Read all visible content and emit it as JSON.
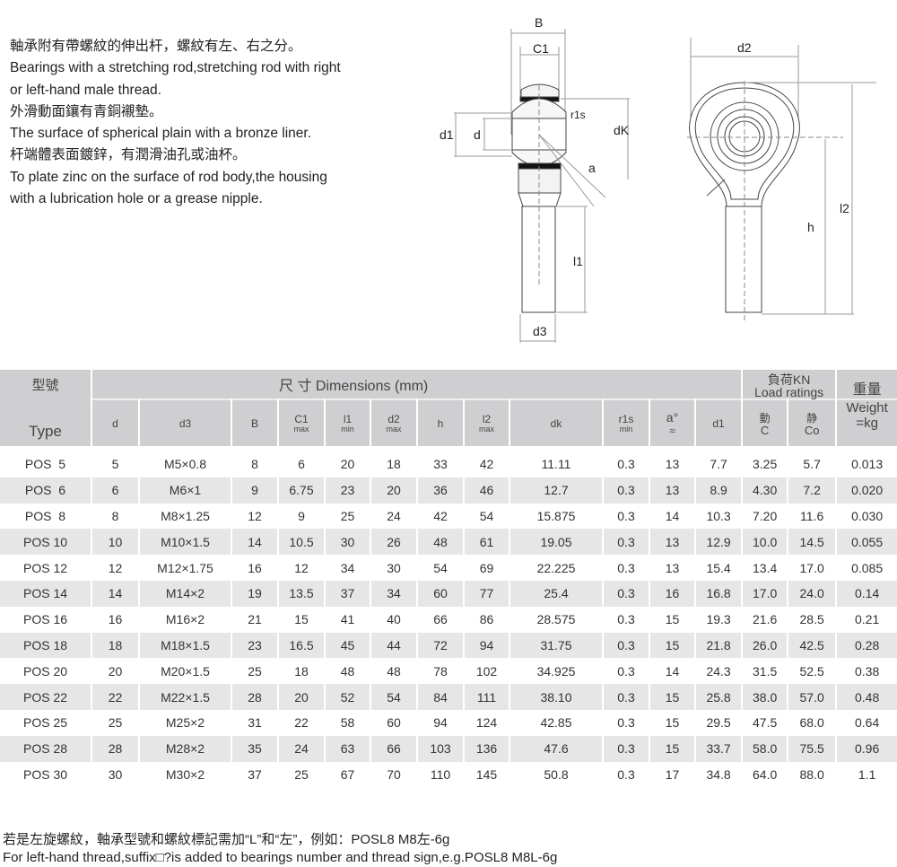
{
  "intro": [
    "軸承附有帶螺紋的伸出杆，螺紋有左、右之分。",
    "Bearings with a stretching rod,stretching rod with right",
    "or left-hand male thread.",
    "外滑動面鑲有青銅襯墊。",
    "The surface of spherical plain with a bronze liner.",
    "杆端體表面鍍鋅，有潤滑油孔或油杯。",
    "To plate zinc on the surface of rod body,the housing",
    "with a lubrication hole or a grease nipple."
  ],
  "drawing_labels": {
    "B": "B",
    "C1": "C1",
    "r1s": "r1s",
    "d1": "d1",
    "d": "d",
    "dk": "dK",
    "a": "a",
    "l1": "l1",
    "d3": "d3",
    "d2": "d2",
    "h": "h",
    "l2": "l2"
  },
  "table": {
    "type_cn": "型號",
    "type_en": "Type",
    "dims_title": "尺 寸 Dimensions (mm)",
    "load_cn": "負荷KN",
    "load_en": "Load ratings",
    "weight_cn": "重量",
    "weight_en": "Weight",
    "weight_unit": "=kg",
    "columns": [
      {
        "main": "d",
        "sub": ""
      },
      {
        "main": "d3",
        "sub": ""
      },
      {
        "main": "B",
        "sub": ""
      },
      {
        "main": "C1",
        "sub": "max"
      },
      {
        "main": "l1",
        "sub": "min"
      },
      {
        "main": "d2",
        "sub": "max"
      },
      {
        "main": "h",
        "sub": ""
      },
      {
        "main": "l2",
        "sub": "max"
      },
      {
        "main": "dk",
        "sub": ""
      },
      {
        "main": "r1s",
        "sub": "min"
      },
      {
        "main": "a°",
        "sub": "≈"
      },
      {
        "main": "d1",
        "sub": ""
      },
      {
        "main": "動",
        "sub": "C"
      },
      {
        "main": "静",
        "sub": "Co"
      }
    ],
    "rows": [
      [
        "POS  5",
        "5",
        "M5×0.8",
        "8",
        "6",
        "20",
        "18",
        "33",
        "42",
        "11.11",
        "0.3",
        "13",
        "7.7",
        "3.25",
        "5.7",
        "0.013"
      ],
      [
        "POS  6",
        "6",
        "M6×1",
        "9",
        "6.75",
        "23",
        "20",
        "36",
        "46",
        "12.7",
        "0.3",
        "13",
        "8.9",
        "4.30",
        "7.2",
        "0.020"
      ],
      [
        "POS  8",
        "8",
        "M8×1.25",
        "12",
        "9",
        "25",
        "24",
        "42",
        "54",
        "15.875",
        "0.3",
        "14",
        "10.3",
        "7.20",
        "11.6",
        "0.030"
      ],
      [
        "POS 10",
        "10",
        "M10×1.5",
        "14",
        "10.5",
        "30",
        "26",
        "48",
        "61",
        "19.05",
        "0.3",
        "13",
        "12.9",
        "10.0",
        "14.5",
        "0.055"
      ],
      [
        "POS 12",
        "12",
        "M12×1.75",
        "16",
        "12",
        "34",
        "30",
        "54",
        "69",
        "22.225",
        "0.3",
        "13",
        "15.4",
        "13.4",
        "17.0",
        "0.085"
      ],
      [
        "POS 14",
        "14",
        "M14×2",
        "19",
        "13.5",
        "37",
        "34",
        "60",
        "77",
        "25.4",
        "0.3",
        "16",
        "16.8",
        "17.0",
        "24.0",
        "0.14"
      ],
      [
        "POS 16",
        "16",
        "M16×2",
        "21",
        "15",
        "41",
        "40",
        "66",
        "86",
        "28.575",
        "0.3",
        "15",
        "19.3",
        "21.6",
        "28.5",
        "0.21"
      ],
      [
        "POS 18",
        "18",
        "M18×1.5",
        "23",
        "16.5",
        "45",
        "44",
        "72",
        "94",
        "31.75",
        "0.3",
        "15",
        "21.8",
        "26.0",
        "42.5",
        "0.28"
      ],
      [
        "POS 20",
        "20",
        "M20×1.5",
        "25",
        "18",
        "48",
        "48",
        "78",
        "102",
        "34.925",
        "0.3",
        "14",
        "24.3",
        "31.5",
        "52.5",
        "0.38"
      ],
      [
        "POS 22",
        "22",
        "M22×1.5",
        "28",
        "20",
        "52",
        "54",
        "84",
        "111",
        "38.10",
        "0.3",
        "15",
        "25.8",
        "38.0",
        "57.0",
        "0.48"
      ],
      [
        "POS 25",
        "25",
        "M25×2",
        "31",
        "22",
        "58",
        "60",
        "94",
        "124",
        "42.85",
        "0.3",
        "15",
        "29.5",
        "47.5",
        "68.0",
        "0.64"
      ],
      [
        "POS 28",
        "28",
        "M28×2",
        "35",
        "24",
        "63",
        "66",
        "103",
        "136",
        "47.6",
        "0.3",
        "15",
        "33.7",
        "58.0",
        "75.5",
        "0.96"
      ],
      [
        "POS 30",
        "30",
        "M30×2",
        "37",
        "25",
        "67",
        "70",
        "110",
        "145",
        "50.8",
        "0.3",
        "17",
        "34.8",
        "64.0",
        "88.0",
        "1.1"
      ]
    ]
  },
  "footer": [
    "若是左旋螺紋，軸承型號和螺紋標記需加“L”和“左”，例如：POSL8  M8左-6g",
    "For left-hand thread,suffix□?is added to bearings number and thread sign,e.g.POSL8  M8L-6g"
  ]
}
